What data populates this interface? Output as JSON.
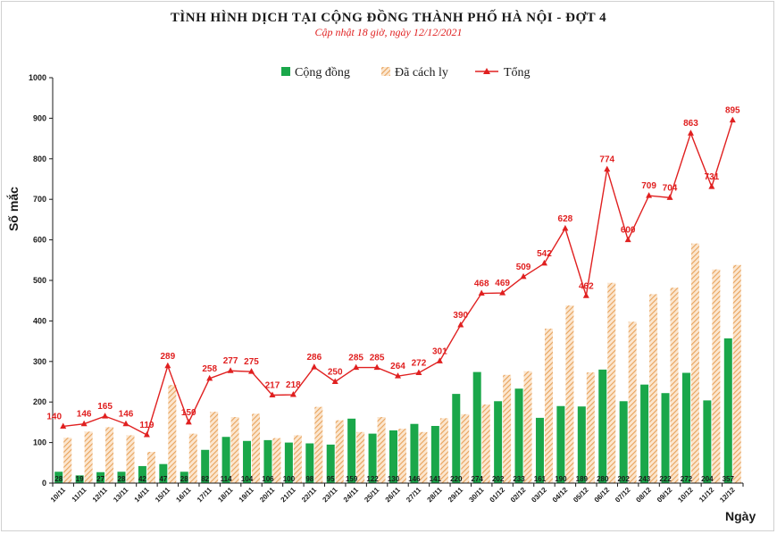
{
  "colors": {
    "community": "#1aa74a",
    "quarantined": "#e8a35c",
    "total": "#e02020"
  },
  "chart_data": {
    "type": "bar",
    "title": "TÌNH HÌNH DỊCH TẠI CỘNG ĐỒNG THÀNH PHỐ HÀ NỘI - ĐỢT 4",
    "subtitle": "Cập nhật 18 giờ, ngày 12/12/2021",
    "xlabel": "Ngày",
    "ylabel": "Số mắc",
    "ylim": [
      0,
      1000
    ],
    "yticks": [
      0,
      100,
      200,
      300,
      400,
      500,
      600,
      700,
      800,
      900,
      1000
    ],
    "legend_position": "top-center",
    "grid": false,
    "categories": [
      "10/11",
      "11/11",
      "12/11",
      "13/11",
      "14/11",
      "15/11",
      "16/11",
      "17/11",
      "18/11",
      "19/11",
      "20/11",
      "21/11",
      "22/11",
      "23/11",
      "24/11",
      "25/11",
      "26/11",
      "27/11",
      "28/11",
      "29/11",
      "30/11",
      "01/12",
      "02/12",
      "03/12",
      "04/12",
      "05/12",
      "06/12",
      "07/12",
      "08/12",
      "09/12",
      "10/12",
      "11/12",
      "12/12"
    ],
    "series": [
      {
        "name": "Cộng đồng",
        "type": "bar",
        "values": [
          28,
          19,
          27,
          28,
          42,
          47,
          28,
          82,
          114,
          104,
          106,
          100,
          98,
          95,
          159,
          122,
          130,
          146,
          141,
          220,
          274,
          202,
          233,
          161,
          190,
          189,
          280,
          202,
          243,
          222,
          272,
          204,
          357
        ]
      },
      {
        "name": "Đã cách ly",
        "type": "bar",
        "values": [
          112,
          127,
          138,
          118,
          77,
          242,
          122,
          176,
          163,
          171,
          111,
          118,
          188,
          155,
          126,
          163,
          134,
          126,
          160,
          170,
          194,
          267,
          276,
          381,
          438,
          273,
          494,
          398,
          466,
          482,
          591,
          527,
          538
        ]
      },
      {
        "name": "Tổng",
        "type": "line",
        "values": [
          140,
          146,
          165,
          146,
          119,
          289,
          150,
          258,
          277,
          275,
          217,
          218,
          286,
          250,
          285,
          285,
          264,
          272,
          301,
          390,
          468,
          469,
          509,
          542,
          628,
          462,
          774,
          600,
          709,
          704,
          863,
          731,
          895
        ]
      }
    ]
  }
}
